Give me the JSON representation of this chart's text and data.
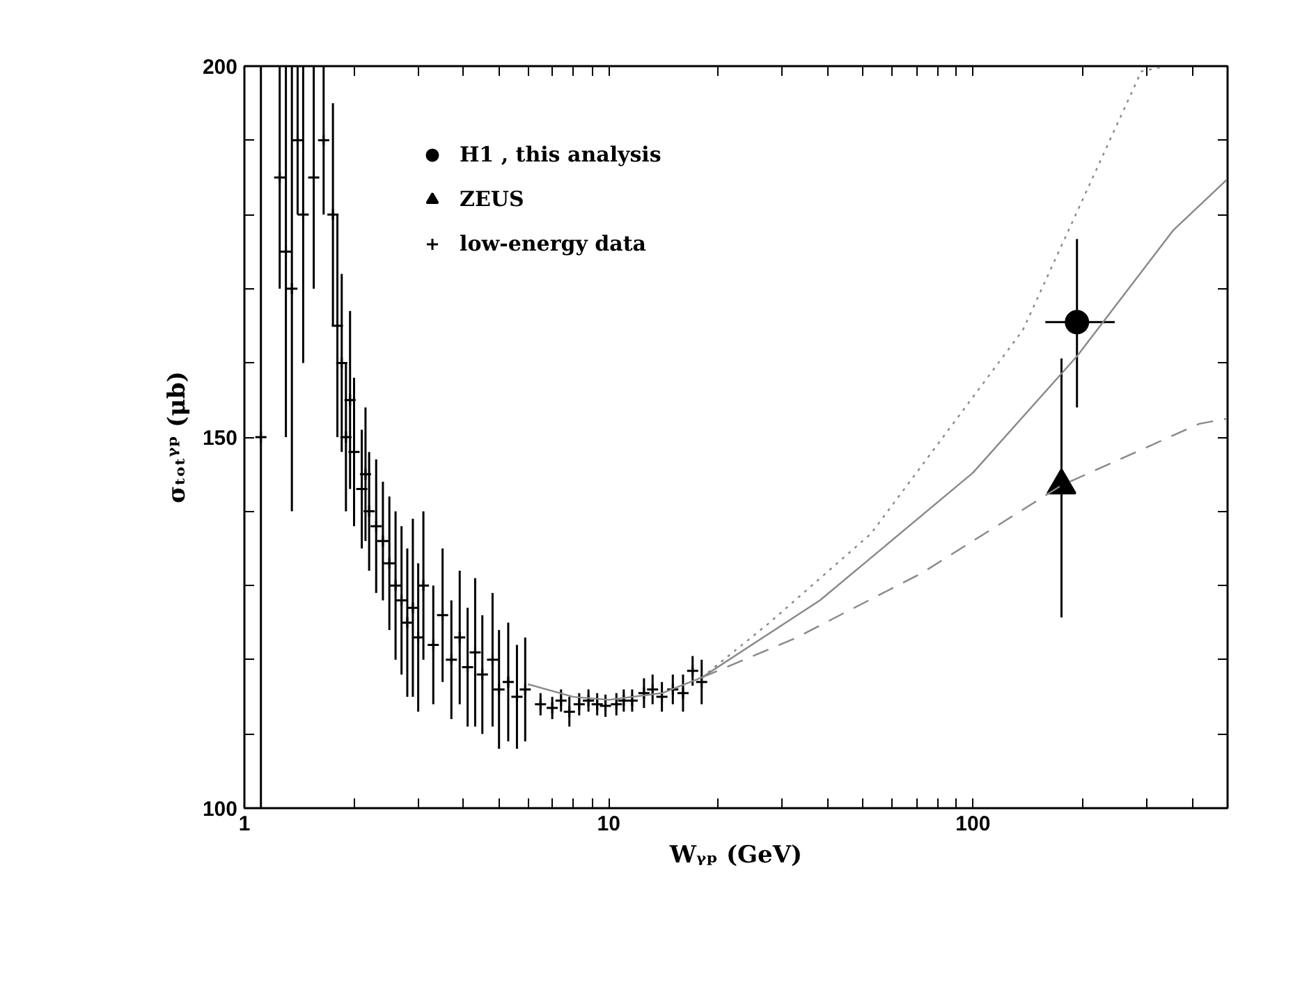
{
  "chart_data": {
    "type": "scatter",
    "xlabel": "Wᵧₚ (GeV)",
    "ylabel": "σₜₒₜᵞᵖ (μb)",
    "log": "x",
    "grid": false,
    "legend": "top left",
    "xlim": [
      1,
      500
    ],
    "ylim": [
      100,
      200
    ],
    "xticks": [
      1,
      {
        "value": 2,
        "label": null
      },
      {
        "value": 3,
        "label": null
      },
      {
        "value": 4,
        "label": null
      },
      {
        "value": 5,
        "label": null
      },
      {
        "value": 6,
        "label": null
      },
      {
        "value": 7,
        "label": null
      },
      {
        "value": 8,
        "label": null
      },
      {
        "value": 9,
        "label": null
      },
      10,
      {
        "value": 20,
        "label": null
      },
      {
        "value": 30,
        "label": null
      },
      {
        "value": 40,
        "label": null
      },
      {
        "value": 50,
        "label": null
      },
      {
        "value": 60,
        "label": null
      },
      {
        "value": 70,
        "label": null
      },
      {
        "value": 80,
        "label": null
      },
      {
        "value": 90,
        "label": null
      },
      100,
      {
        "value": 200,
        "label": null
      },
      {
        "value": 300,
        "label": null
      },
      {
        "value": 400,
        "label": null
      }
    ],
    "yticks": [
      100,
      {
        "value": 110,
        "label": null
      },
      {
        "value": 120,
        "label": null
      },
      {
        "value": 130,
        "label": null
      },
      {
        "value": 140,
        "label": null
      },
      150,
      {
        "value": 160,
        "label": null
      },
      {
        "value": 170,
        "label": null
      },
      {
        "value": 180,
        "label": null
      },
      {
        "value": 190,
        "label": null
      },
      200
    ],
    "series": [
      {
        "name": "H1 , this analysis",
        "color": "#000000",
        "marker": "circle",
        "x": [
          193
        ],
        "values": [
          165.5
        ],
        "errors": [
          [
            154,
            176.7
          ]
        ],
        "xerrors": [
          [
            158,
            245
          ]
        ]
      },
      {
        "name": "ZEUS",
        "color": "#000000",
        "marker": "triangle",
        "x": [
          175
        ],
        "values": [
          143.5
        ],
        "errors": [
          [
            125.7,
            160.6
          ]
        ]
      },
      {
        "name": "low-energy data",
        "color": "#000000",
        "marker": "cross",
        "x": [
          1.11,
          1.25,
          1.3,
          1.35,
          1.4,
          1.45,
          1.55,
          1.65,
          1.75,
          1.8,
          1.85,
          1.9,
          1.95,
          2.0,
          2.1,
          2.15,
          2.2,
          2.3,
          2.4,
          2.5,
          2.6,
          2.7,
          2.8,
          2.9,
          3.0,
          3.1,
          3.3,
          3.5,
          3.7,
          3.9,
          4.1,
          4.3,
          4.5,
          4.8,
          5.0,
          5.3,
          5.6,
          5.9,
          6.5,
          7.0,
          7.4,
          7.8,
          8.3,
          8.8,
          9.3,
          9.8,
          10.5,
          11,
          11.6,
          12.5,
          13.2,
          14,
          15,
          16,
          17,
          18
        ],
        "values": [
          150,
          185,
          175,
          170,
          190,
          180,
          185,
          190,
          180,
          165,
          160,
          150,
          155,
          148,
          143,
          145,
          140,
          138,
          136,
          133,
          130,
          128,
          125,
          127,
          123,
          130,
          122,
          126,
          120,
          123,
          119,
          121,
          118,
          120,
          116,
          117,
          115,
          116,
          114,
          113.5,
          114.5,
          113,
          114,
          114.5,
          114,
          113.8,
          114,
          114.5,
          114.5,
          115.5,
          116,
          115,
          116,
          115.5,
          118.5,
          117
        ],
        "errors": [
          50,
          15,
          25,
          30,
          10,
          20,
          15,
          10,
          15,
          15,
          12,
          10,
          12,
          10,
          8,
          9,
          8,
          9,
          8,
          9,
          10,
          10,
          10,
          12,
          10,
          10,
          8,
          9,
          8,
          9,
          8,
          10,
          8,
          9,
          8,
          8,
          7,
          7,
          1.5,
          1.5,
          1.5,
          2,
          1.5,
          1.5,
          1.5,
          1.5,
          1.5,
          1.5,
          1.5,
          2,
          2,
          2,
          2,
          2.5,
          2,
          3
        ]
      },
      {
        "type": "line",
        "color": "#888888",
        "line_style": "solid",
        "x": [
          6,
          8,
          10,
          14,
          18,
          38,
          100,
          193,
          355,
          500
        ],
        "values": [
          116.7,
          115,
          114.6,
          115.5,
          117.6,
          128,
          145.2,
          160.9,
          177.9,
          184.8
        ]
      },
      {
        "type": "line",
        "color": "#888888",
        "line_style": "dotted",
        "x": [
          18,
          27.5,
          52.5,
          137,
          290,
          340
        ],
        "values": [
          117.6,
          124.9,
          137,
          164.4,
          199.3,
          200
        ]
      },
      {
        "type": "line",
        "color": "#888888",
        "line_style": "dashed",
        "x": [
          18,
          32.5,
          72.5,
          175,
          418,
          500
        ],
        "values": [
          117.6,
          122.9,
          131.7,
          143.5,
          151.8,
          152.5
        ]
      }
    ]
  }
}
